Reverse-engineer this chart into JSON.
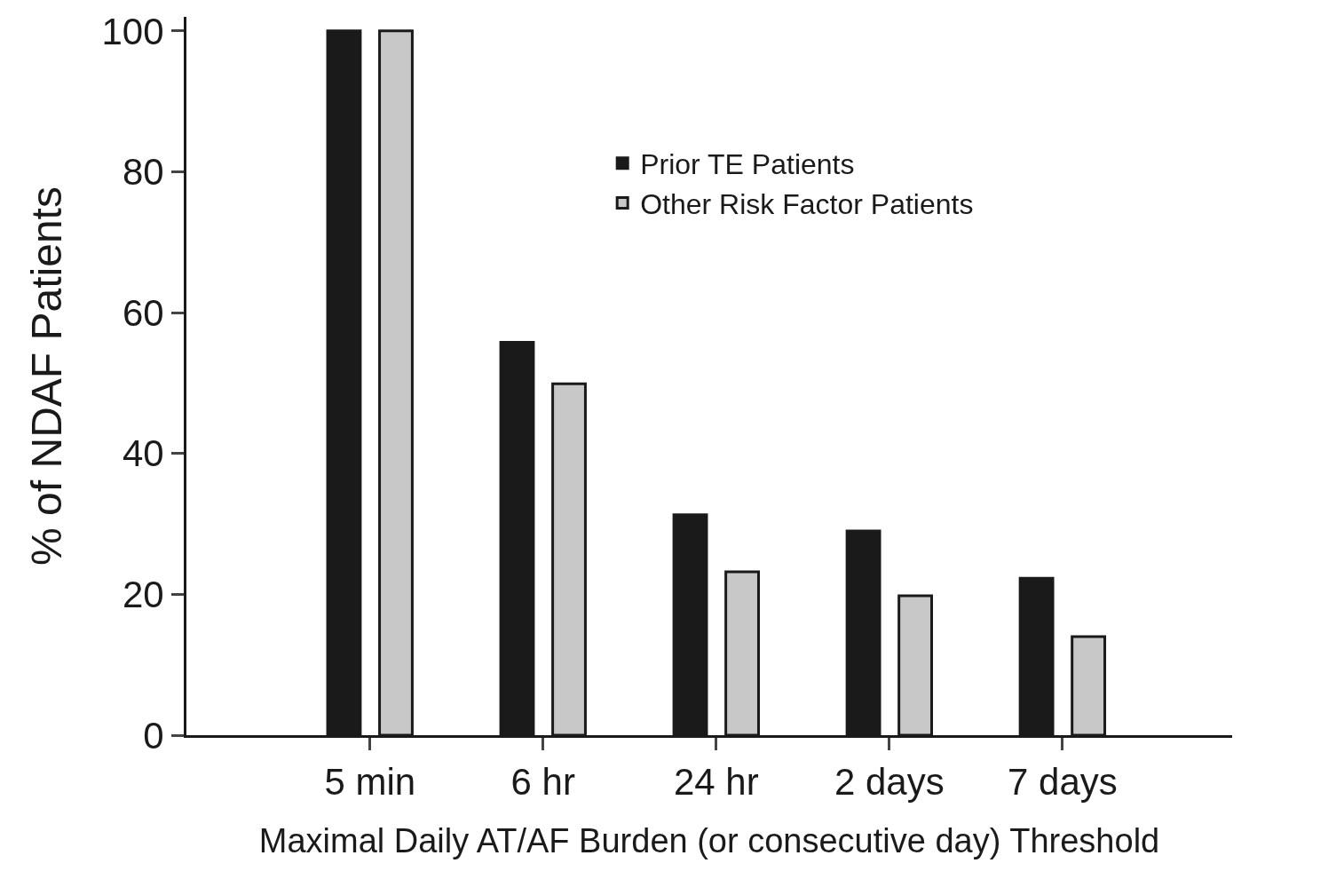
{
  "chart_data": {
    "type": "bar",
    "xlabel": "Maximal Daily AT/AF Burden (or consecutive day) Threshold",
    "ylabel": "% of NDAF Patients",
    "categories": [
      "5 min",
      "6 hr",
      "24 hr",
      "2 days",
      "7 days"
    ],
    "series": [
      {
        "name": "Prior TE Patients",
        "color": "#1a1a1a",
        "values": [
          100,
          55.8,
          31.3,
          29.0,
          22.3
        ]
      },
      {
        "name": "Other Risk Factor Patients",
        "color": "#c8c8c8",
        "values": [
          100,
          49.9,
          23.2,
          19.8,
          14.0
        ]
      }
    ],
    "ylim": [
      0,
      102
    ],
    "yticks": [
      0,
      20,
      40,
      60,
      80,
      100
    ],
    "legend": "top right"
  }
}
